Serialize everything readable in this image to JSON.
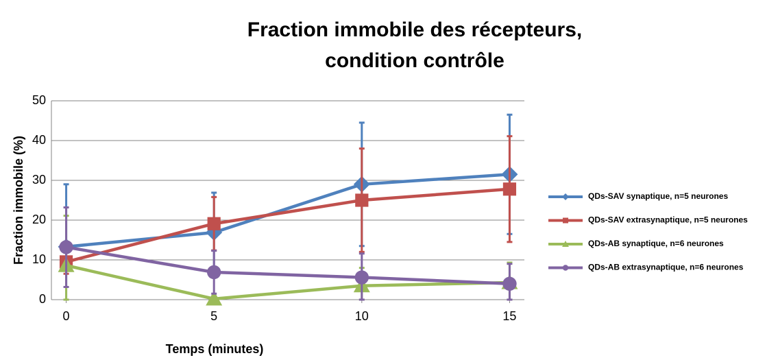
{
  "chart_data": {
    "type": "line",
    "title": [
      "Fraction immobile des récepteurs,",
      "condition contrôle"
    ],
    "xlabel": "Temps (minutes)",
    "ylabel": "Fraction immobile (%)",
    "x": [
      0,
      5,
      10,
      15
    ],
    "xlim": [
      -0.5,
      15.5
    ],
    "xticks": [
      0,
      5,
      10,
      15
    ],
    "ylim": [
      0,
      50
    ],
    "yticks": [
      0,
      10,
      20,
      30,
      40,
      50
    ],
    "grid": true,
    "legend": "right",
    "series": [
      {
        "name": "QDs-SAV synaptique, n=5 neurones",
        "color": "#4f81bd",
        "marker": "diamond",
        "values": [
          13.3,
          16.9,
          29.0,
          31.5
        ],
        "errors": [
          15.7,
          10,
          15.5,
          15
        ]
      },
      {
        "name": "QDs-SAV extrasynaptique, n=5 neurones",
        "color": "#c0504d",
        "marker": "square",
        "values": [
          9.5,
          19.1,
          25.0,
          27.8
        ],
        "errors": [
          3,
          6.7,
          13,
          13.3
        ]
      },
      {
        "name": "QDs-AB synaptique, n=6 neurones",
        "color": "#9bbb59",
        "marker": "triangle",
        "values": [
          8.6,
          0.2,
          3.5,
          4.3
        ],
        "errors": [
          12.5,
          0,
          4.5,
          5
        ]
      },
      {
        "name": "QDs-AB extrasynaptique, n=6 neurones",
        "color": "#8064a2",
        "marker": "circle",
        "values": [
          13.2,
          6.9,
          5.6,
          4.0
        ],
        "errors": [
          10,
          5.4,
          6,
          5
        ]
      }
    ]
  }
}
